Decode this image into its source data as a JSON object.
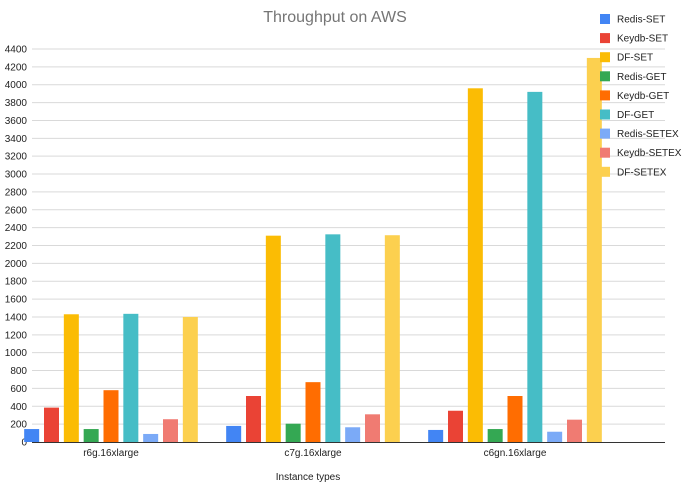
{
  "chart_data": {
    "type": "bar",
    "title": "Throughput on AWS",
    "xlabel": "Instance types",
    "ylabel": "",
    "ylim": [
      0,
      4400
    ],
    "ytick_step": 200,
    "grid": true,
    "legend_position": "right",
    "categories": [
      "r6g.16xlarge",
      "c7g.16xlarge",
      "c6gn.16xlarge"
    ],
    "series": [
      {
        "name": "Redis-SET",
        "color": "#4285f4",
        "values": [
          145,
          180,
          135
        ]
      },
      {
        "name": "Keydb-SET",
        "color": "#ea4335",
        "values": [
          385,
          515,
          350
        ]
      },
      {
        "name": "DF-SET",
        "color": "#fbbc04",
        "values": [
          1430,
          2310,
          3960
        ]
      },
      {
        "name": "Redis-GET",
        "color": "#34a853",
        "values": [
          145,
          205,
          145
        ]
      },
      {
        "name": "Keydb-GET",
        "color": "#ff6d01",
        "values": [
          580,
          670,
          515
        ]
      },
      {
        "name": "DF-GET",
        "color": "#46bdc6",
        "values": [
          1435,
          2325,
          3920
        ]
      },
      {
        "name": "Redis-SETEX",
        "color": "#7baaf7",
        "values": [
          90,
          165,
          115
        ]
      },
      {
        "name": "Keydb-SETEX",
        "color": "#f07b72",
        "values": [
          255,
          310,
          250
        ]
      },
      {
        "name": "DF-SETEX",
        "color": "#fcd04f",
        "values": [
          1400,
          2315,
          4300
        ]
      }
    ]
  }
}
